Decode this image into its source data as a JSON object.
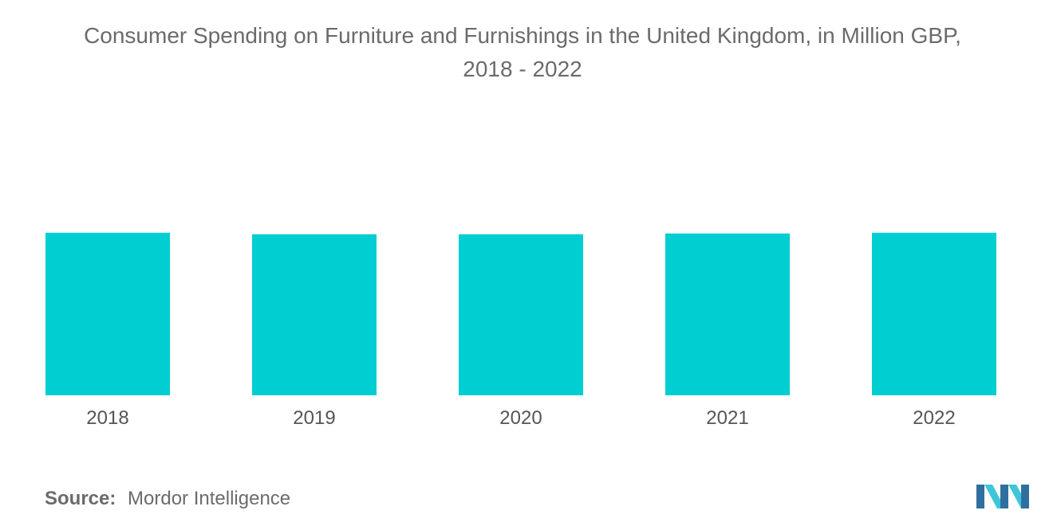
{
  "title_line1": "Consumer Spending on Furniture and Furnishings in the United Kingdom, in Million GBP,",
  "title_line2": "2018 - 2022",
  "source": {
    "label": "Source:",
    "value": "Mordor Intelligence"
  },
  "colors": {
    "bar": "#00CED1",
    "text": "#6b6b6b",
    "logo_dark": "#2f6f9f",
    "logo_light": "#3ec6d8"
  },
  "chart_data": {
    "type": "bar",
    "title": "Consumer Spending on Furniture and Furnishings in the United Kingdom, in Million GBP, 2018 - 2022",
    "categories": [
      "2018",
      "2019",
      "2020",
      "2021",
      "2022"
    ],
    "values": [
      20.4,
      20.2,
      20.2,
      20.3,
      20.4
    ],
    "ylim": [
      0,
      30
    ],
    "grid": false,
    "legend": "none"
  }
}
